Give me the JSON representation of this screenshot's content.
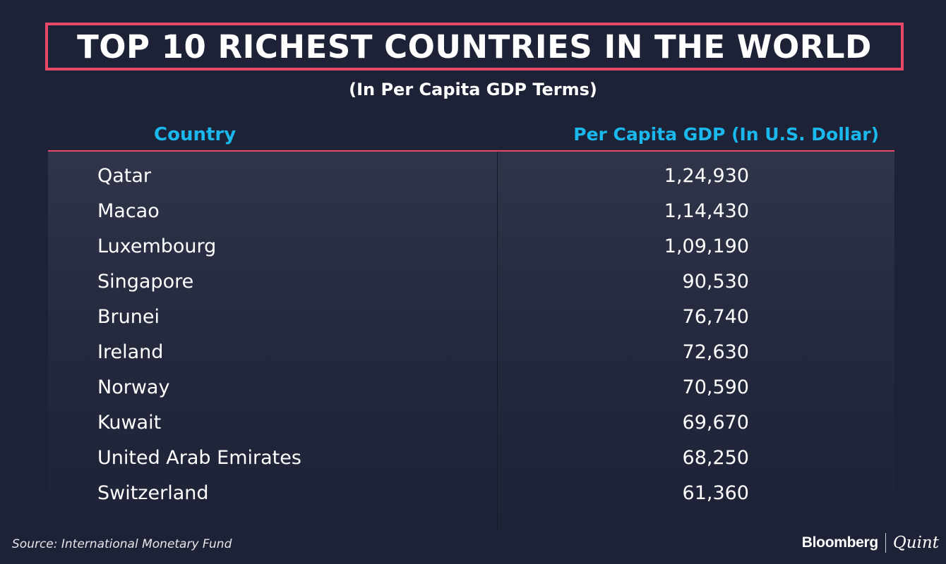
{
  "chart_data": {
    "type": "table",
    "title": "TOP 10 RICHEST COUNTRIES IN THE WORLD",
    "subtitle": "(In Per Capita GDP Terms)",
    "columns": [
      "Country",
      "Per Capita GDP (In U.S. Dollar)"
    ],
    "rows": [
      {
        "country": "Qatar",
        "value": "1,24,930"
      },
      {
        "country": "Macao",
        "value": "1,14,430"
      },
      {
        "country": "Luxembourg",
        "value": "1,09,190"
      },
      {
        "country": "Singapore",
        "value": "90,530"
      },
      {
        "country": "Brunei",
        "value": "76,740"
      },
      {
        "country": "Ireland",
        "value": "72,630"
      },
      {
        "country": "Norway",
        "value": "70,590"
      },
      {
        "country": "Kuwait",
        "value": "69,670"
      },
      {
        "country": "United Arab Emirates",
        "value": "68,250"
      },
      {
        "country": "Switzerland",
        "value": "61,360"
      }
    ],
    "values": [
      124930,
      114430,
      109190,
      90530,
      76740,
      72630,
      70590,
      69670,
      68250,
      61360
    ]
  },
  "footer": {
    "source": "Source: International Monetary Fund",
    "brand_primary": "Bloomberg",
    "brand_secondary": "Quint"
  },
  "colors": {
    "background": "#1d2236",
    "accent": "#e8496b",
    "header_text": "#1ab8ec"
  }
}
